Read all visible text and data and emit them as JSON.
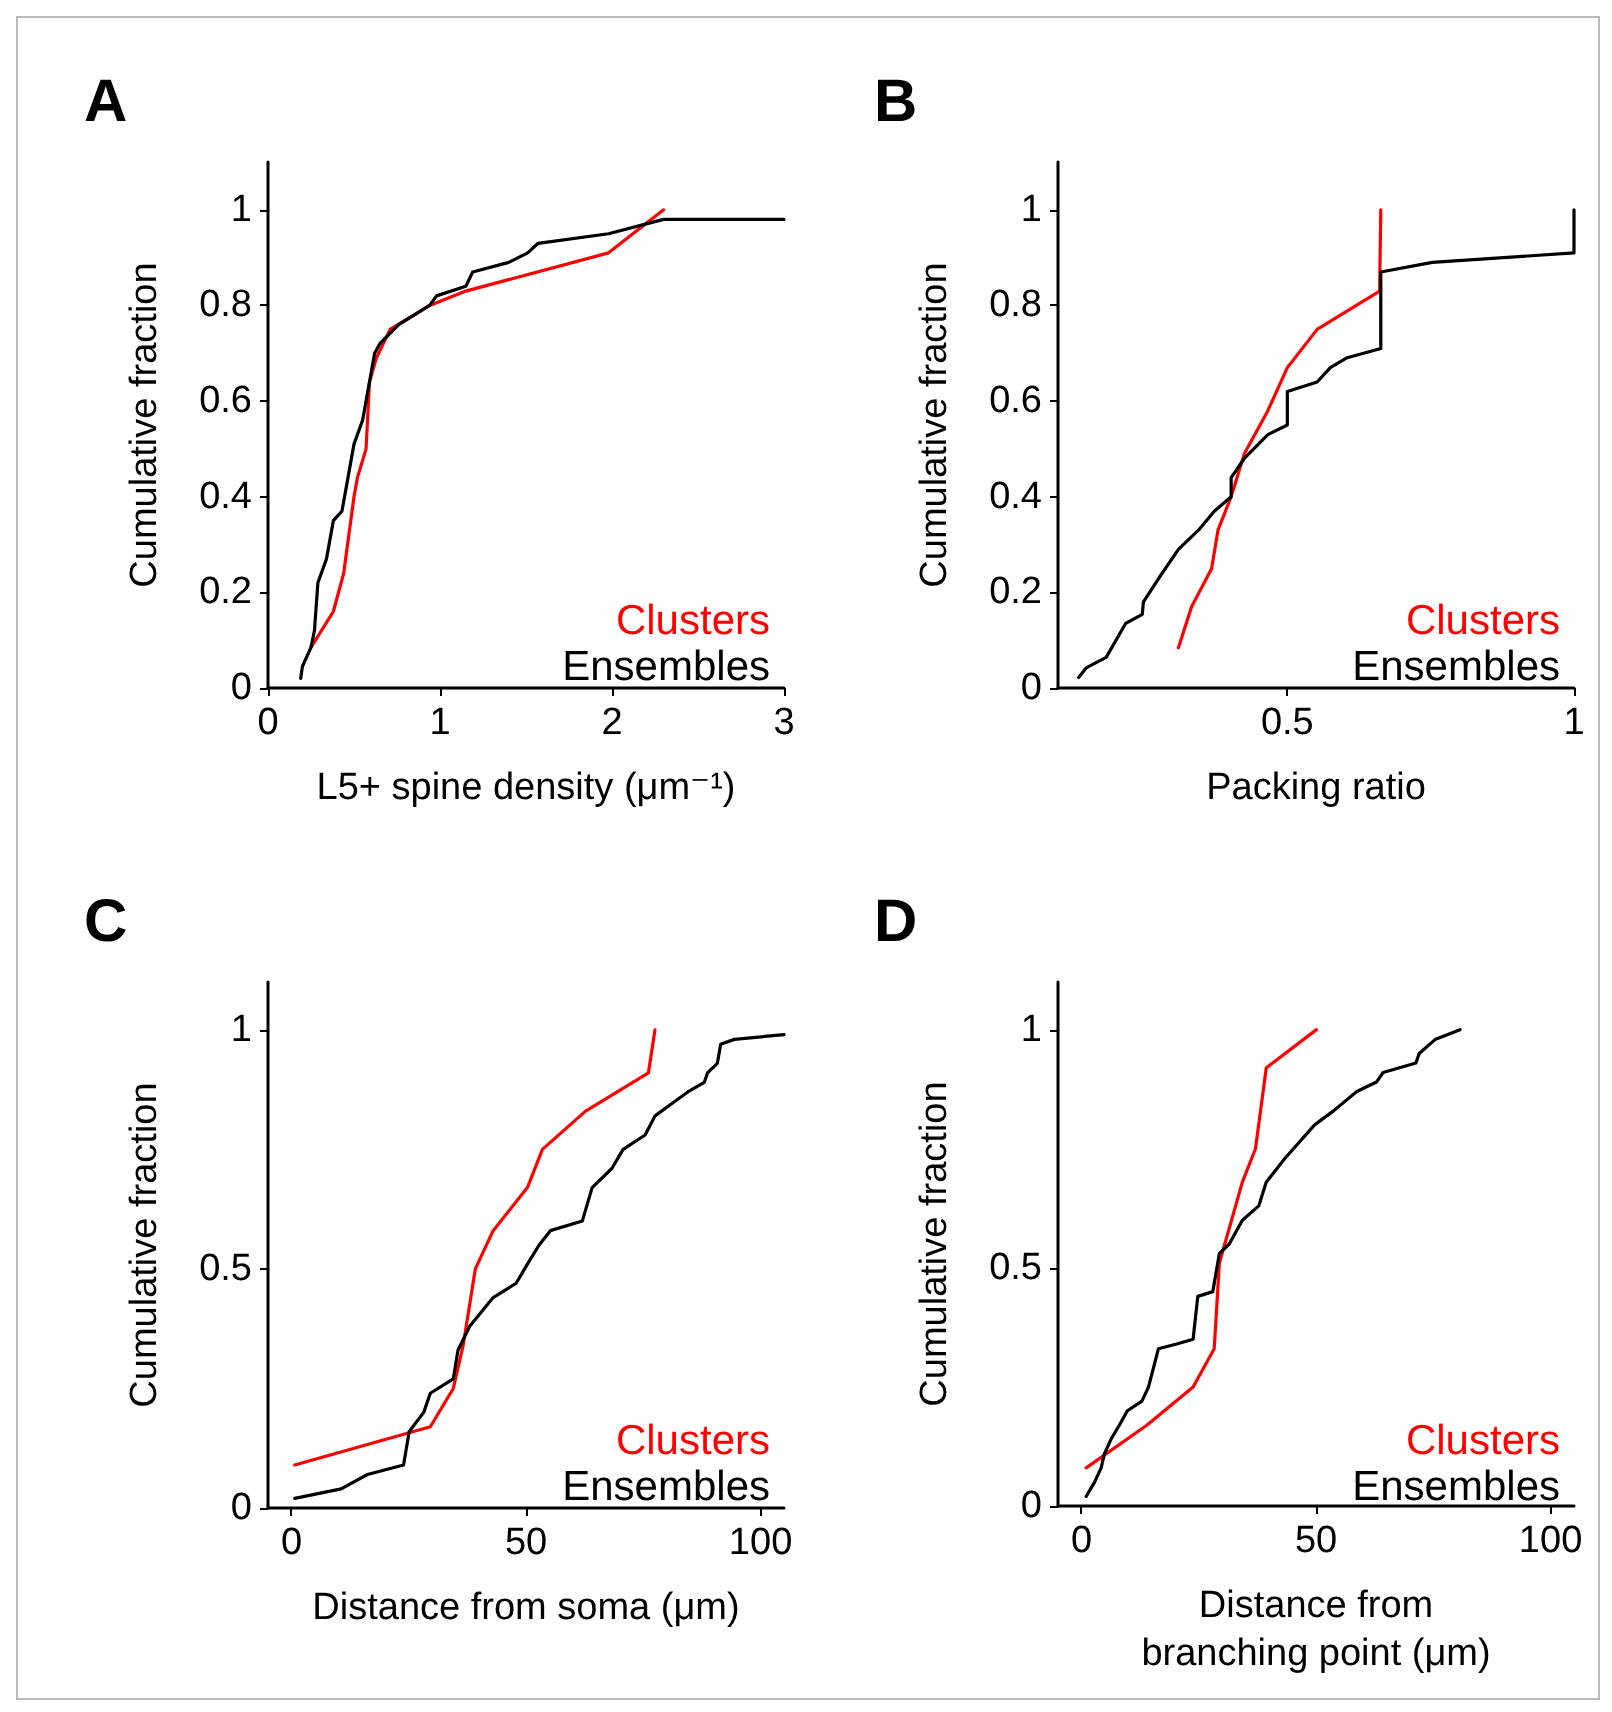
{
  "chart_data": [
    {
      "type": "line",
      "title": "A",
      "xlabel": "L5+ spine density (μm⁻¹)",
      "ylabel": "Cumulative fraction",
      "xlim": [
        0,
        3
      ],
      "xticks": [
        0,
        1,
        2,
        3
      ],
      "ylim": [
        0,
        1.1
      ],
      "yticks": [
        0,
        0.2,
        0.4,
        0.6,
        0.8,
        1
      ],
      "legend": "bottom right",
      "marker": "none",
      "line_style": "solid",
      "series": [
        {
          "name": "Clusters",
          "color": "#ff0000",
          "x": [
            0.25,
            0.38,
            0.44,
            0.5,
            0.52,
            0.57,
            0.59,
            0.63,
            0.71,
            0.94,
            1.15,
            1.98,
            2.3
          ],
          "values": [
            0.085,
            0.16,
            0.24,
            0.4,
            0.44,
            0.5,
            0.64,
            0.69,
            0.75,
            0.8,
            0.83,
            0.91,
            1.0
          ]
        },
        {
          "name": "Ensembles",
          "color": "#000000",
          "x": [
            0.19,
            0.2,
            0.25,
            0.27,
            0.29,
            0.34,
            0.38,
            0.43,
            0.5,
            0.55,
            0.59,
            0.62,
            0.65,
            0.76,
            0.94,
            0.98,
            1.15,
            1.19,
            1.4,
            1.51,
            1.57,
            1.98,
            2.3,
            3.0
          ],
          "values": [
            0.02,
            0.045,
            0.085,
            0.12,
            0.22,
            0.27,
            0.35,
            0.37,
            0.51,
            0.56,
            0.64,
            0.7,
            0.72,
            0.76,
            0.8,
            0.82,
            0.84,
            0.87,
            0.89,
            0.91,
            0.93,
            0.95,
            0.98,
            0.98
          ]
        }
      ]
    },
    {
      "type": "line",
      "title": "B",
      "xlabel": "Packing ratio",
      "ylabel": "Cumulative fraction",
      "xlim": [
        0.1,
        1
      ],
      "xticks": [
        0.5,
        1
      ],
      "ylim": [
        0,
        1.1
      ],
      "yticks": [
        0,
        0.2,
        0.4,
        0.6,
        0.8,
        1
      ],
      "legend": "bottom right",
      "marker": "none",
      "line_style": "solid",
      "series": [
        {
          "name": "Clusters",
          "color": "#ff0000",
          "x": [
            0.31,
            0.333,
            0.368,
            0.379,
            0.402,
            0.425,
            0.466,
            0.5,
            0.552,
            0.661,
            0.663
          ],
          "values": [
            0.084,
            0.17,
            0.25,
            0.33,
            0.4,
            0.49,
            0.58,
            0.67,
            0.75,
            0.83,
            1.0
          ]
        },
        {
          "name": "Ensembles",
          "color": "#000000",
          "x": [
            0.136,
            0.149,
            0.184,
            0.218,
            0.247,
            0.249,
            0.276,
            0.31,
            0.345,
            0.373,
            0.402,
            0.402,
            0.425,
            0.466,
            0.5,
            0.5,
            0.552,
            0.575,
            0.603,
            0.663,
            0.663,
            0.753,
            1.0,
            1.0
          ],
          "values": [
            0.022,
            0.042,
            0.064,
            0.135,
            0.154,
            0.18,
            0.23,
            0.29,
            0.33,
            0.37,
            0.4,
            0.44,
            0.48,
            0.53,
            0.55,
            0.62,
            0.64,
            0.67,
            0.69,
            0.71,
            0.87,
            0.89,
            0.91,
            1.0
          ]
        }
      ]
    },
    {
      "type": "line",
      "title": "C",
      "xlabel": "Distance from soma (μm)",
      "ylabel": "Cumulative fraction",
      "xlim": [
        -5,
        105
      ],
      "xticks": [
        0,
        50,
        100
      ],
      "ylim": [
        0,
        1.1
      ],
      "yticks": [
        0,
        0.5,
        1
      ],
      "legend": "bottom right",
      "marker": "none",
      "line_style": "solid",
      "series": [
        {
          "name": "Clusters",
          "color": "#ff0000",
          "x": [
            0.7,
            29.6,
            34.5,
            36.6,
            39.2,
            43.0,
            50.3,
            53.5,
            62.7,
            76.1,
            77.5
          ],
          "values": [
            0.09,
            0.17,
            0.25,
            0.34,
            0.5,
            0.58,
            0.67,
            0.75,
            0.83,
            0.91,
            1.0
          ]
        },
        {
          "name": "Ensembles",
          "color": "#000000",
          "x": [
            0.7,
            10.6,
            16.2,
            23.9,
            25.1,
            28.2,
            29.6,
            34.5,
            35.5,
            38.0,
            43.0,
            47.9,
            50.3,
            52.8,
            55.2,
            62.0,
            64.1,
            68.3,
            70.7,
            75.4,
            77.5,
            81.7,
            84.5,
            88.0,
            88.7,
            90.8,
            91.5,
            94.4,
            105
          ],
          "values": [
            0.02,
            0.04,
            0.07,
            0.09,
            0.16,
            0.2,
            0.24,
            0.27,
            0.33,
            0.38,
            0.44,
            0.47,
            0.51,
            0.55,
            0.58,
            0.6,
            0.67,
            0.71,
            0.75,
            0.78,
            0.82,
            0.85,
            0.87,
            0.89,
            0.91,
            0.93,
            0.97,
            0.98,
            0.99
          ]
        }
      ]
    },
    {
      "type": "line",
      "title": "D",
      "xlabel": "Distance from\nbranching point (μm)",
      "ylabel": "Cumulative fraction",
      "xlim": [
        -5,
        105
      ],
      "xticks": [
        0,
        50,
        100
      ],
      "ylim": [
        0,
        1.1
      ],
      "yticks": [
        0,
        0.5,
        1
      ],
      "legend": "bottom right",
      "marker": "none",
      "line_style": "solid",
      "series": [
        {
          "name": "Clusters",
          "color": "#ff0000",
          "x": [
            1.0,
            14.0,
            23.8,
            28.3,
            29.4,
            34.3,
            37.1,
            39.4,
            50.1
          ],
          "values": [
            0.08,
            0.17,
            0.25,
            0.33,
            0.51,
            0.68,
            0.75,
            0.92,
            1.0
          ]
        },
        {
          "name": "Ensembles",
          "color": "#000000",
          "x": [
            1.0,
            2.8,
            4.2,
            4.9,
            6.3,
            8.1,
            9.8,
            12.9,
            14.3,
            16.4,
            20.3,
            23.8,
            24.8,
            28.0,
            29.4,
            31.5,
            34.3,
            37.8,
            39.4,
            43.4,
            49.7,
            53.8,
            58.7,
            62.9,
            64.3,
            71.3,
            72.0,
            75.5,
            80.7
          ],
          "values": [
            0.02,
            0.05,
            0.08,
            0.11,
            0.14,
            0.17,
            0.2,
            0.22,
            0.25,
            0.33,
            0.34,
            0.35,
            0.44,
            0.45,
            0.53,
            0.55,
            0.6,
            0.63,
            0.68,
            0.73,
            0.8,
            0.83,
            0.87,
            0.89,
            0.91,
            0.93,
            0.95,
            0.98,
            1.0
          ]
        }
      ]
    }
  ]
}
